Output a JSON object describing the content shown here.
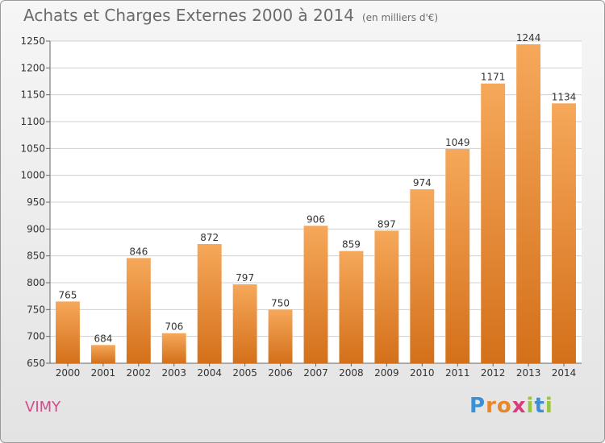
{
  "title": "Achats et Charges Externes 2000 à 2014",
  "unit_note": "(en milliers d'€)",
  "city": "VIMY",
  "brand": {
    "text": "Proxiti",
    "letters": [
      "P",
      "r",
      "o",
      "x",
      "i",
      "t",
      "i"
    ],
    "colors": [
      "#3a8fd6",
      "#e8862a",
      "#e8862a",
      "#d83b7a",
      "#9bc53d",
      "#3a8fd6",
      "#9bc53d"
    ]
  },
  "colors": {
    "bar": "#f08a2c",
    "bar_light": "#f6a85a",
    "bar_dark": "#d4701a",
    "grid": "#d0d0d0",
    "text": "#333333"
  },
  "chart_data": {
    "type": "bar",
    "categories": [
      "2000",
      "2001",
      "2002",
      "2003",
      "2004",
      "2005",
      "2006",
      "2007",
      "2008",
      "2009",
      "2010",
      "2011",
      "2012",
      "2013",
      "2014"
    ],
    "values": [
      765,
      684,
      846,
      706,
      872,
      797,
      750,
      906,
      859,
      897,
      974,
      1049,
      1171,
      1244,
      1134
    ],
    "ylim": [
      650,
      1250
    ],
    "yticks": [
      650,
      700,
      750,
      800,
      850,
      900,
      950,
      1000,
      1050,
      1100,
      1150,
      1200,
      1250
    ],
    "grid": true,
    "data_labels": true
  }
}
